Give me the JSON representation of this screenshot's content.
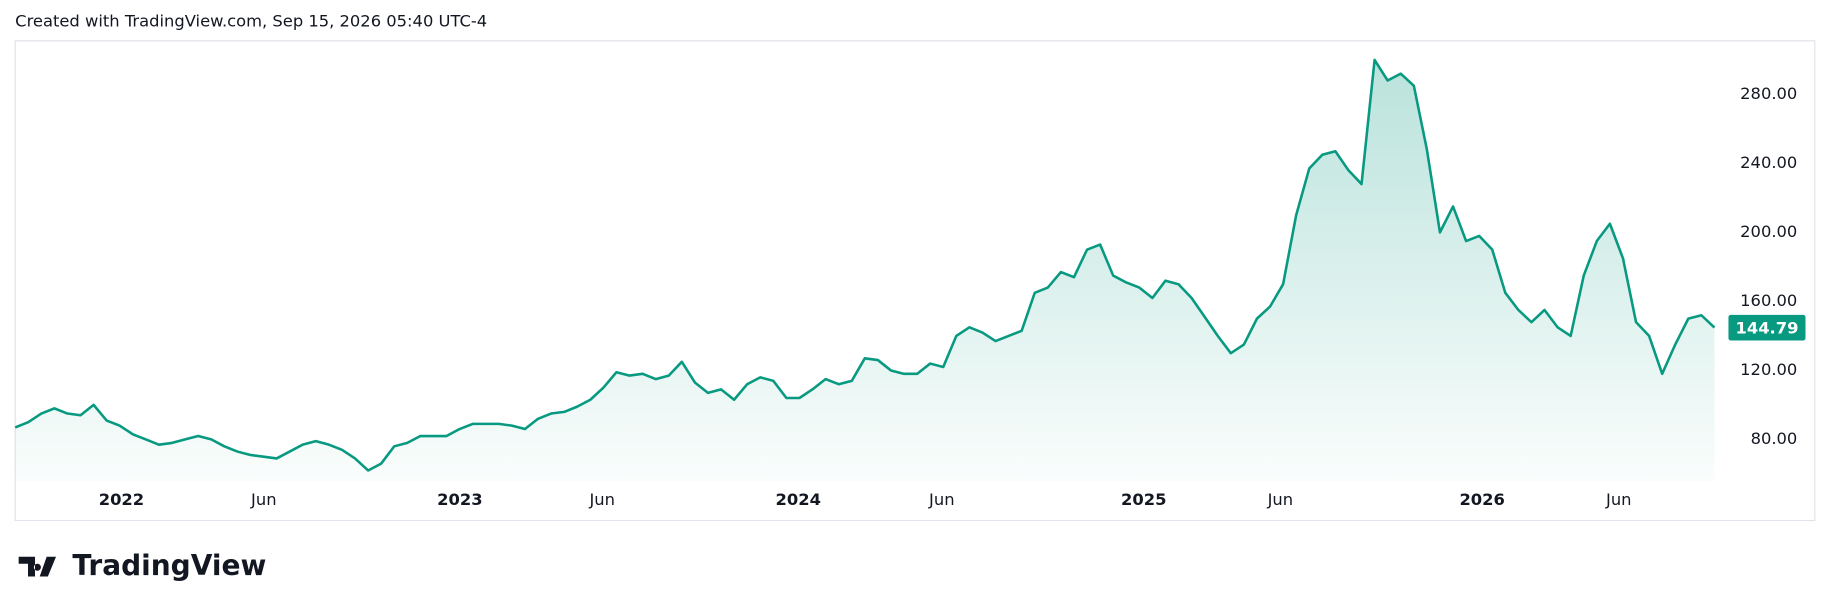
{
  "header": "Created with TradingView.com, Sep 15, 2026 05:40 UTC-4",
  "logo": "TradingView",
  "chart_data": {
    "type": "area",
    "color": "#089981",
    "values": [
      87,
      90,
      95,
      98,
      95,
      94,
      100,
      91,
      88,
      83,
      80,
      77,
      78,
      80,
      82,
      80,
      76,
      73,
      71,
      70,
      69,
      73,
      77,
      79,
      77,
      74,
      69,
      62,
      66,
      76,
      78,
      82,
      82,
      82,
      86,
      89,
      89,
      89,
      88,
      86,
      92,
      95,
      96,
      99,
      103,
      110,
      119,
      117,
      118,
      115,
      117,
      125,
      113,
      107,
      109,
      103,
      112,
      116,
      114,
      104,
      104,
      109,
      115,
      112,
      114,
      127,
      126,
      120,
      118,
      118,
      124,
      122,
      140,
      145,
      142,
      137,
      140,
      143,
      165,
      168,
      177,
      174,
      190,
      193,
      175,
      171,
      168,
      162,
      172,
      170,
      162,
      151,
      140,
      130,
      135,
      150,
      157,
      170,
      210,
      237,
      245,
      247,
      236,
      228,
      300,
      288,
      292,
      285,
      248,
      200,
      215,
      195,
      198,
      190,
      165,
      155,
      148,
      155,
      145,
      140,
      175,
      195,
      205,
      185,
      148,
      140,
      118,
      135,
      150,
      152,
      144.79
    ],
    "xlim": [
      0,
      130
    ],
    "xticks": [
      {
        "value": 8.13,
        "label": "2022"
      },
      {
        "value": 19.02,
        "label": "Jun"
      },
      {
        "value": 34.02,
        "label": "2023"
      },
      {
        "value": 44.91,
        "label": "Jun"
      },
      {
        "value": 59.91,
        "label": "2024"
      },
      {
        "value": 70.89,
        "label": "Jun"
      },
      {
        "value": 86.34,
        "label": "2025"
      },
      {
        "value": 96.79,
        "label": "Jun"
      },
      {
        "value": 112.23,
        "label": "2026"
      },
      {
        "value": 122.68,
        "label": "Jun"
      }
    ],
    "ylim": [
      56,
      311
    ],
    "yticks": [
      {
        "value": 80,
        "label": "80.00"
      },
      {
        "value": 120,
        "label": "120.00"
      },
      {
        "value": 160,
        "label": "160.00"
      },
      {
        "value": 200,
        "label": "200.00"
      },
      {
        "value": 240,
        "label": "240.00"
      },
      {
        "value": 280,
        "label": "280.00"
      }
    ]
  }
}
